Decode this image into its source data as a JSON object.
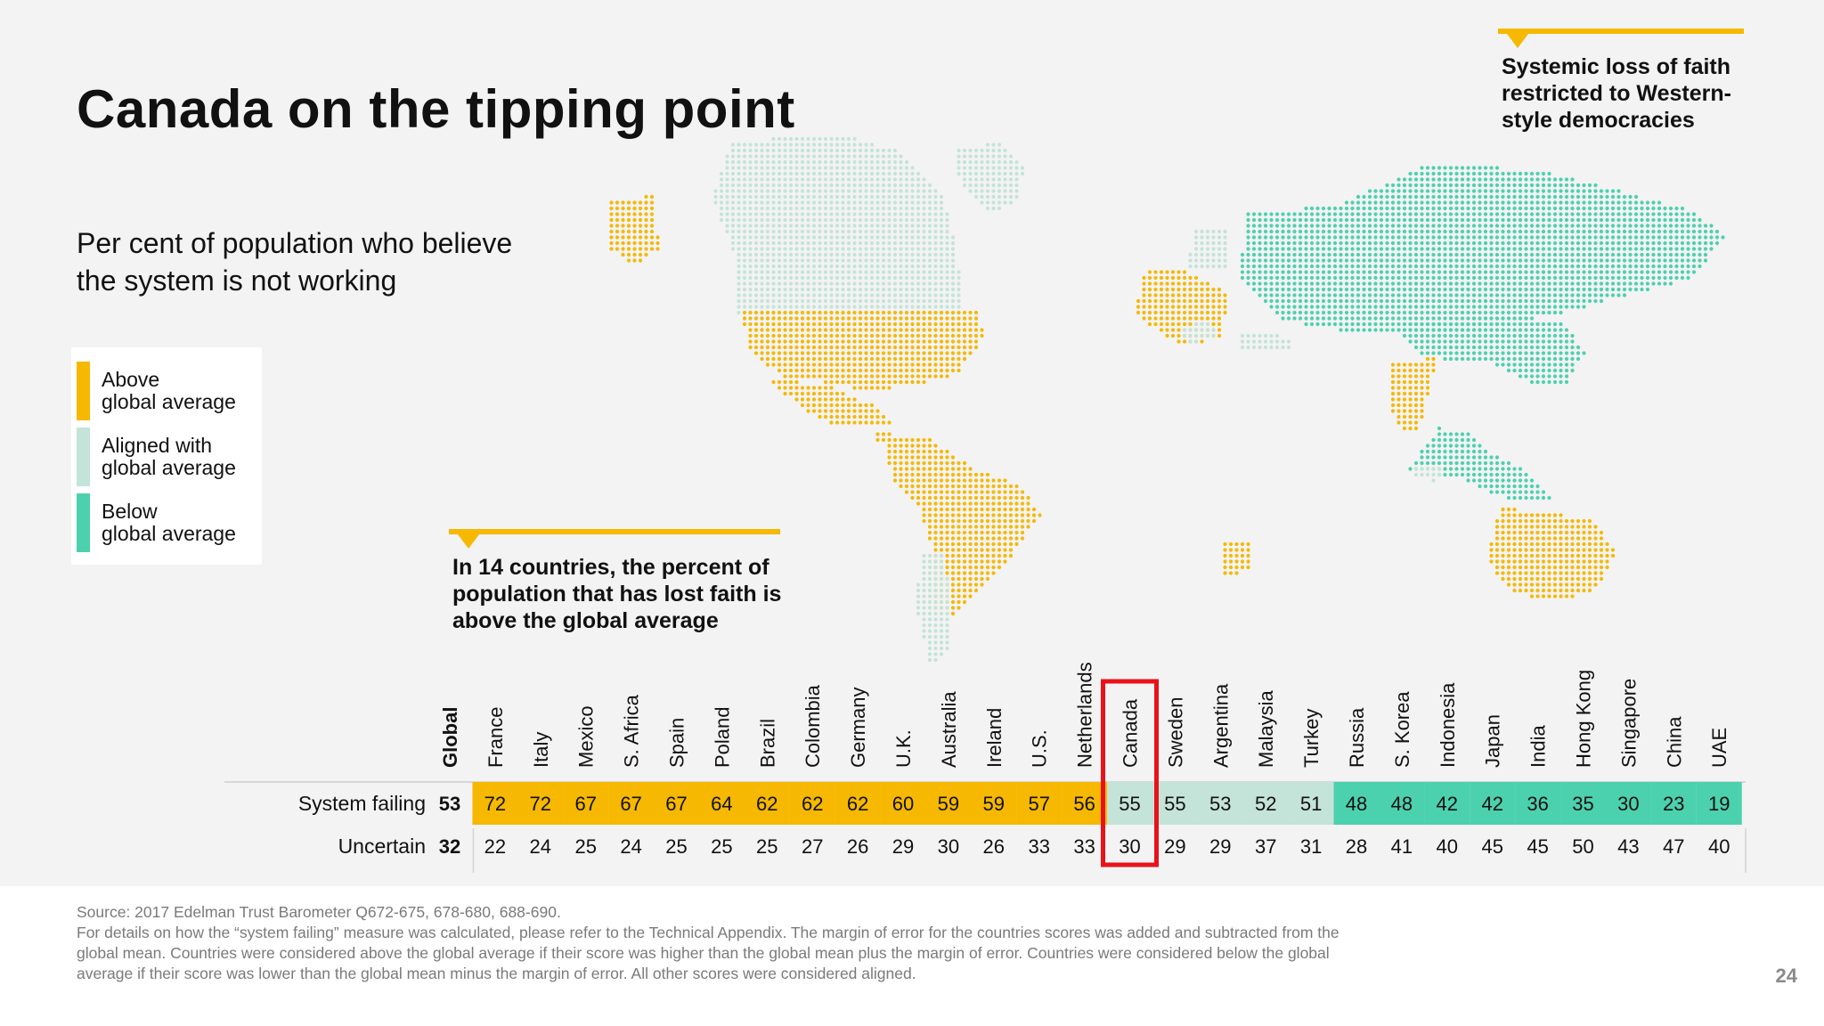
{
  "page": {
    "title": "Canada on the tipping point",
    "subtitle": "Per cent of population who believe\nthe system is not working",
    "page_number": "24"
  },
  "colors": {
    "above": "#f6b800",
    "aligned": "#c4e3d9",
    "below": "#4cd1ae",
    "highlight": "#e8121a"
  },
  "legend": [
    {
      "label": "Above\nglobal average",
      "color": "#f6b800"
    },
    {
      "label": "Aligned with\nglobal average",
      "color": "#c4e3d9"
    },
    {
      "label": "Below\nglobal average",
      "color": "#4cd1ae"
    }
  ],
  "callouts": {
    "middle": "In 14 countries, the percent of population that has lost faith is above the global average",
    "top_right": "Systemic loss of faith restricted to Western-style democracies"
  },
  "chart_data": {
    "type": "table",
    "row_labels": [
      "System failing",
      "Uncertain"
    ],
    "global": {
      "label": "Global",
      "system_failing": 53,
      "uncertain": 32
    },
    "highlight_country": "Canada",
    "countries": [
      {
        "name": "France",
        "system_failing": 72,
        "uncertain": 22,
        "category": "above"
      },
      {
        "name": "Italy",
        "system_failing": 72,
        "uncertain": 24,
        "category": "above"
      },
      {
        "name": "Mexico",
        "system_failing": 67,
        "uncertain": 25,
        "category": "above"
      },
      {
        "name": "S. Africa",
        "system_failing": 67,
        "uncertain": 24,
        "category": "above"
      },
      {
        "name": "Spain",
        "system_failing": 67,
        "uncertain": 25,
        "category": "above"
      },
      {
        "name": "Poland",
        "system_failing": 64,
        "uncertain": 25,
        "category": "above"
      },
      {
        "name": "Brazil",
        "system_failing": 62,
        "uncertain": 25,
        "category": "above"
      },
      {
        "name": "Colombia",
        "system_failing": 62,
        "uncertain": 27,
        "category": "above"
      },
      {
        "name": "Germany",
        "system_failing": 62,
        "uncertain": 26,
        "category": "above"
      },
      {
        "name": "U.K.",
        "system_failing": 60,
        "uncertain": 29,
        "category": "above"
      },
      {
        "name": "Australia",
        "system_failing": 59,
        "uncertain": 30,
        "category": "above"
      },
      {
        "name": "Ireland",
        "system_failing": 59,
        "uncertain": 26,
        "category": "above"
      },
      {
        "name": "U.S.",
        "system_failing": 57,
        "uncertain": 33,
        "category": "above"
      },
      {
        "name": "Netherlands",
        "system_failing": 56,
        "uncertain": 33,
        "category": "above"
      },
      {
        "name": "Canada",
        "system_failing": 55,
        "uncertain": 30,
        "category": "aligned"
      },
      {
        "name": "Sweden",
        "system_failing": 55,
        "uncertain": 29,
        "category": "aligned"
      },
      {
        "name": "Argentina",
        "system_failing": 53,
        "uncertain": 29,
        "category": "aligned"
      },
      {
        "name": "Malaysia",
        "system_failing": 52,
        "uncertain": 37,
        "category": "aligned"
      },
      {
        "name": "Turkey",
        "system_failing": 51,
        "uncertain": 31,
        "category": "aligned"
      },
      {
        "name": "Russia",
        "system_failing": 48,
        "uncertain": 28,
        "category": "below"
      },
      {
        "name": "S. Korea",
        "system_failing": 48,
        "uncertain": 41,
        "category": "below"
      },
      {
        "name": "Indonesia",
        "system_failing": 42,
        "uncertain": 40,
        "category": "below"
      },
      {
        "name": "Japan",
        "system_failing": 42,
        "uncertain": 45,
        "category": "below"
      },
      {
        "name": "India",
        "system_failing": 36,
        "uncertain": 45,
        "category": "below"
      },
      {
        "name": "Hong Kong",
        "system_failing": 35,
        "uncertain": 50,
        "category": "below"
      },
      {
        "name": "Singapore",
        "system_failing": 30,
        "uncertain": 43,
        "category": "below"
      },
      {
        "name": "China",
        "system_failing": 23,
        "uncertain": 47,
        "category": "below"
      },
      {
        "name": "UAE",
        "system_failing": 19,
        "uncertain": 40,
        "category": "below"
      }
    ]
  },
  "footer": {
    "source": "Source: 2017 Edelman Trust Barometer Q672-675, 678-680, 688-690.",
    "details": "For details on how the “system failing” measure was calculated, please refer to the Technical Appendix. The margin of error for the countries scores was added and subtracted from the global mean. Countries were considered above the global average if their score was higher than the global mean plus the margin of error. Countries were considered below the global average if their score was lower than the global mean minus the margin of error. All other scores were considered aligned."
  }
}
